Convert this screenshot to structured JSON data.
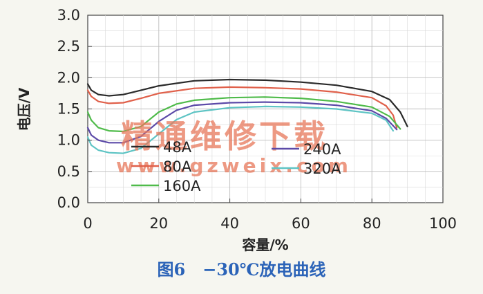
{
  "chart_data": {
    "type": "line",
    "xlabel": "容量/%",
    "ylabel": "电压/V",
    "xlim": [
      0,
      100
    ],
    "ylim": [
      0,
      3.0
    ],
    "xticks": [
      0,
      20,
      40,
      60,
      80,
      100
    ],
    "yticks": [
      "0.0",
      "0.5",
      "1.0",
      "1.5",
      "2.0",
      "2.5",
      "3.0"
    ],
    "grid": true,
    "legend_position": "inside-lower-left",
    "series": [
      {
        "name": "48A",
        "color": "#2a2a2a",
        "points": [
          [
            0,
            1.9
          ],
          [
            1,
            1.8
          ],
          [
            3,
            1.73
          ],
          [
            6,
            1.71
          ],
          [
            10,
            1.73
          ],
          [
            15,
            1.8
          ],
          [
            20,
            1.87
          ],
          [
            30,
            1.95
          ],
          [
            40,
            1.97
          ],
          [
            50,
            1.96
          ],
          [
            60,
            1.93
          ],
          [
            70,
            1.88
          ],
          [
            80,
            1.78
          ],
          [
            85,
            1.65
          ],
          [
            88,
            1.45
          ],
          [
            90,
            1.22
          ]
        ]
      },
      {
        "name": "80A",
        "color": "#e0604a",
        "points": [
          [
            0,
            1.8
          ],
          [
            1,
            1.7
          ],
          [
            3,
            1.62
          ],
          [
            6,
            1.59
          ],
          [
            10,
            1.6
          ],
          [
            15,
            1.67
          ],
          [
            20,
            1.75
          ],
          [
            30,
            1.83
          ],
          [
            40,
            1.85
          ],
          [
            50,
            1.84
          ],
          [
            60,
            1.82
          ],
          [
            70,
            1.77
          ],
          [
            80,
            1.68
          ],
          [
            84,
            1.55
          ],
          [
            86,
            1.4
          ],
          [
            87,
            1.2
          ]
        ]
      },
      {
        "name": "160A",
        "color": "#4fbb4a",
        "points": [
          [
            0,
            1.45
          ],
          [
            1,
            1.32
          ],
          [
            3,
            1.2
          ],
          [
            6,
            1.15
          ],
          [
            10,
            1.14
          ],
          [
            15,
            1.22
          ],
          [
            20,
            1.45
          ],
          [
            25,
            1.58
          ],
          [
            30,
            1.64
          ],
          [
            40,
            1.68
          ],
          [
            50,
            1.69
          ],
          [
            60,
            1.67
          ],
          [
            70,
            1.62
          ],
          [
            80,
            1.53
          ],
          [
            85,
            1.38
          ],
          [
            88,
            1.18
          ]
        ]
      },
      {
        "name": "240A",
        "color": "#5c4aa8",
        "points": [
          [
            0,
            1.2
          ],
          [
            1,
            1.08
          ],
          [
            3,
            1.0
          ],
          [
            6,
            0.96
          ],
          [
            10,
            0.96
          ],
          [
            15,
            1.06
          ],
          [
            20,
            1.3
          ],
          [
            25,
            1.48
          ],
          [
            30,
            1.56
          ],
          [
            40,
            1.6
          ],
          [
            50,
            1.61
          ],
          [
            60,
            1.6
          ],
          [
            70,
            1.56
          ],
          [
            80,
            1.47
          ],
          [
            84,
            1.35
          ],
          [
            87,
            1.17
          ]
        ]
      },
      {
        "name": "320A",
        "color": "#5ec4c4",
        "points": [
          [
            0,
            1.05
          ],
          [
            1,
            0.92
          ],
          [
            3,
            0.84
          ],
          [
            6,
            0.8
          ],
          [
            10,
            0.79
          ],
          [
            15,
            0.87
          ],
          [
            20,
            1.1
          ],
          [
            25,
            1.33
          ],
          [
            30,
            1.45
          ],
          [
            40,
            1.52
          ],
          [
            50,
            1.54
          ],
          [
            60,
            1.53
          ],
          [
            70,
            1.5
          ],
          [
            80,
            1.43
          ],
          [
            84,
            1.32
          ],
          [
            86,
            1.15
          ]
        ]
      }
    ]
  },
  "caption": {
    "label": "图6",
    "title": "−30℃放电曲线"
  },
  "watermark": {
    "text": "精通维修下载",
    "url": "www.gzweix.com",
    "color": "#e8785a"
  }
}
